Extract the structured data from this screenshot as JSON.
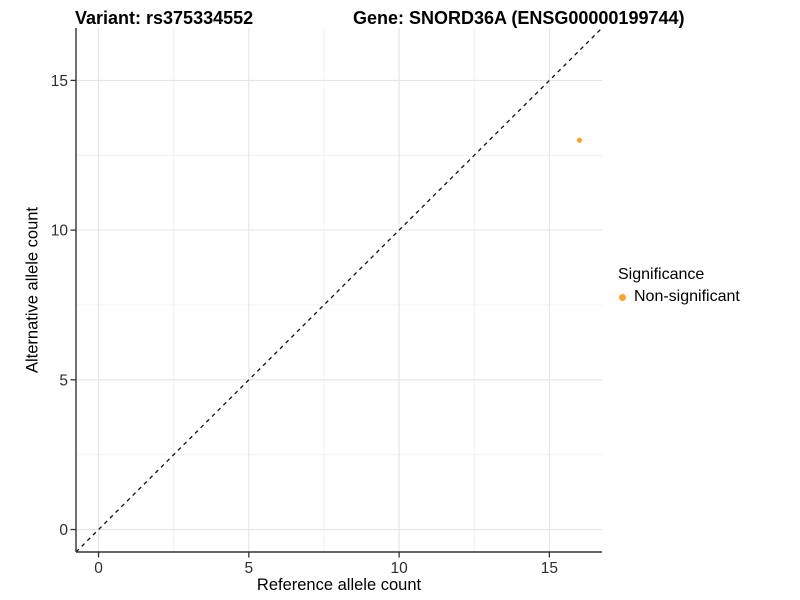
{
  "titles": {
    "left": "Variant: rs375334552",
    "right": "Gene: SNORD36A (ENSG00000199744)"
  },
  "axes": {
    "x_label": "Reference allele count",
    "y_label": "Alternative allele count"
  },
  "legend": {
    "title": "Significance",
    "items": [
      {
        "label": "Non-significant",
        "color": "#FDA428"
      }
    ]
  },
  "colors": {
    "background": "#ffffff",
    "axis_line": "#333333",
    "tick_label": "#2e2e2e",
    "grid_major": "#e4e4e4",
    "grid_minor": "#f1f1f1",
    "identity_line": "#111111",
    "point_orange": "#FDA428"
  },
  "chart_data": {
    "type": "scatter",
    "title": "Variant: rs375334552 — Gene: SNORD36A (ENSG00000199744)",
    "xlabel": "Reference allele count",
    "ylabel": "Alternative allele count",
    "xlim": [
      -0.75,
      16.75
    ],
    "ylim": [
      -0.75,
      16.75
    ],
    "x_ticks": [
      0,
      5,
      10,
      15
    ],
    "y_ticks": [
      0,
      5,
      10,
      15
    ],
    "x_minor_ticks": [
      2.5,
      7.5,
      12.5
    ],
    "y_minor_ticks": [
      2.5,
      7.5,
      12.5
    ],
    "grid": "major+minor",
    "legend_position": "right",
    "series": [
      {
        "name": "Non-significant",
        "color": "#FDA428",
        "points": [
          {
            "x": 16,
            "y": 13
          }
        ]
      }
    ],
    "reference_line": {
      "equation": "y = x",
      "style": "dashed",
      "color": "#111111",
      "from": [
        -0.75,
        -0.75
      ],
      "to": [
        16.75,
        16.75
      ]
    }
  }
}
